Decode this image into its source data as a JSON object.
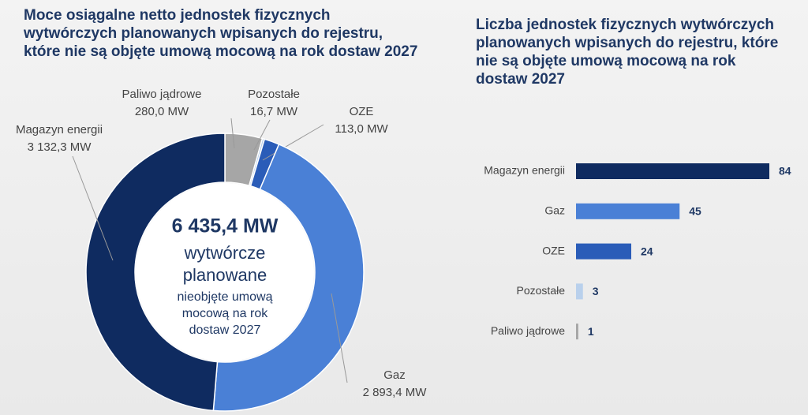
{
  "chart_data": [
    {
      "type": "donut",
      "title": [
        "Moce osiągalne netto jednostek fizycznych",
        "wytwórczych planowanych wpisanych do rejestru,",
        "które nie są objęte umową mocową na rok dostaw 2027"
      ],
      "center_title": "6 435,4 MW",
      "center_lines": [
        "wytwórcze",
        "planowane",
        "nieobjęte umową",
        "mocową na rok",
        "dostaw 2027"
      ],
      "categories": [
        "Paliwo jądrowe",
        "Pozostałe",
        "OZE",
        "Gaz",
        "Magazyn energii"
      ],
      "values": [
        280.0,
        16.7,
        113.0,
        2893.4,
        3132.3
      ],
      "value_labels": [
        "280,0 MW",
        "16,7 MW",
        "113,0 MW",
        "2 893,4 MW",
        "3 132,3 MW"
      ],
      "colors": [
        "#a6a6a6",
        "#b9d0ec",
        "#2a5cb8",
        "#4a80d6",
        "#0f2b60"
      ]
    },
    {
      "type": "hbar",
      "title": [
        "Liczba jednostek fizycznych wytwórczych",
        "planowanych wpisanych do rejestru, które",
        "nie są objęte umową mocową na rok",
        "dostaw 2027"
      ],
      "categories": [
        "Magazyn energii",
        "Gaz",
        "OZE",
        "Pozostałe",
        "Paliwo jądrowe"
      ],
      "values": [
        84,
        45,
        24,
        3,
        1
      ],
      "colors": [
        "#0f2b60",
        "#4a80d6",
        "#2a5cb8",
        "#b9d0ec",
        "#a6a6a6"
      ]
    }
  ]
}
